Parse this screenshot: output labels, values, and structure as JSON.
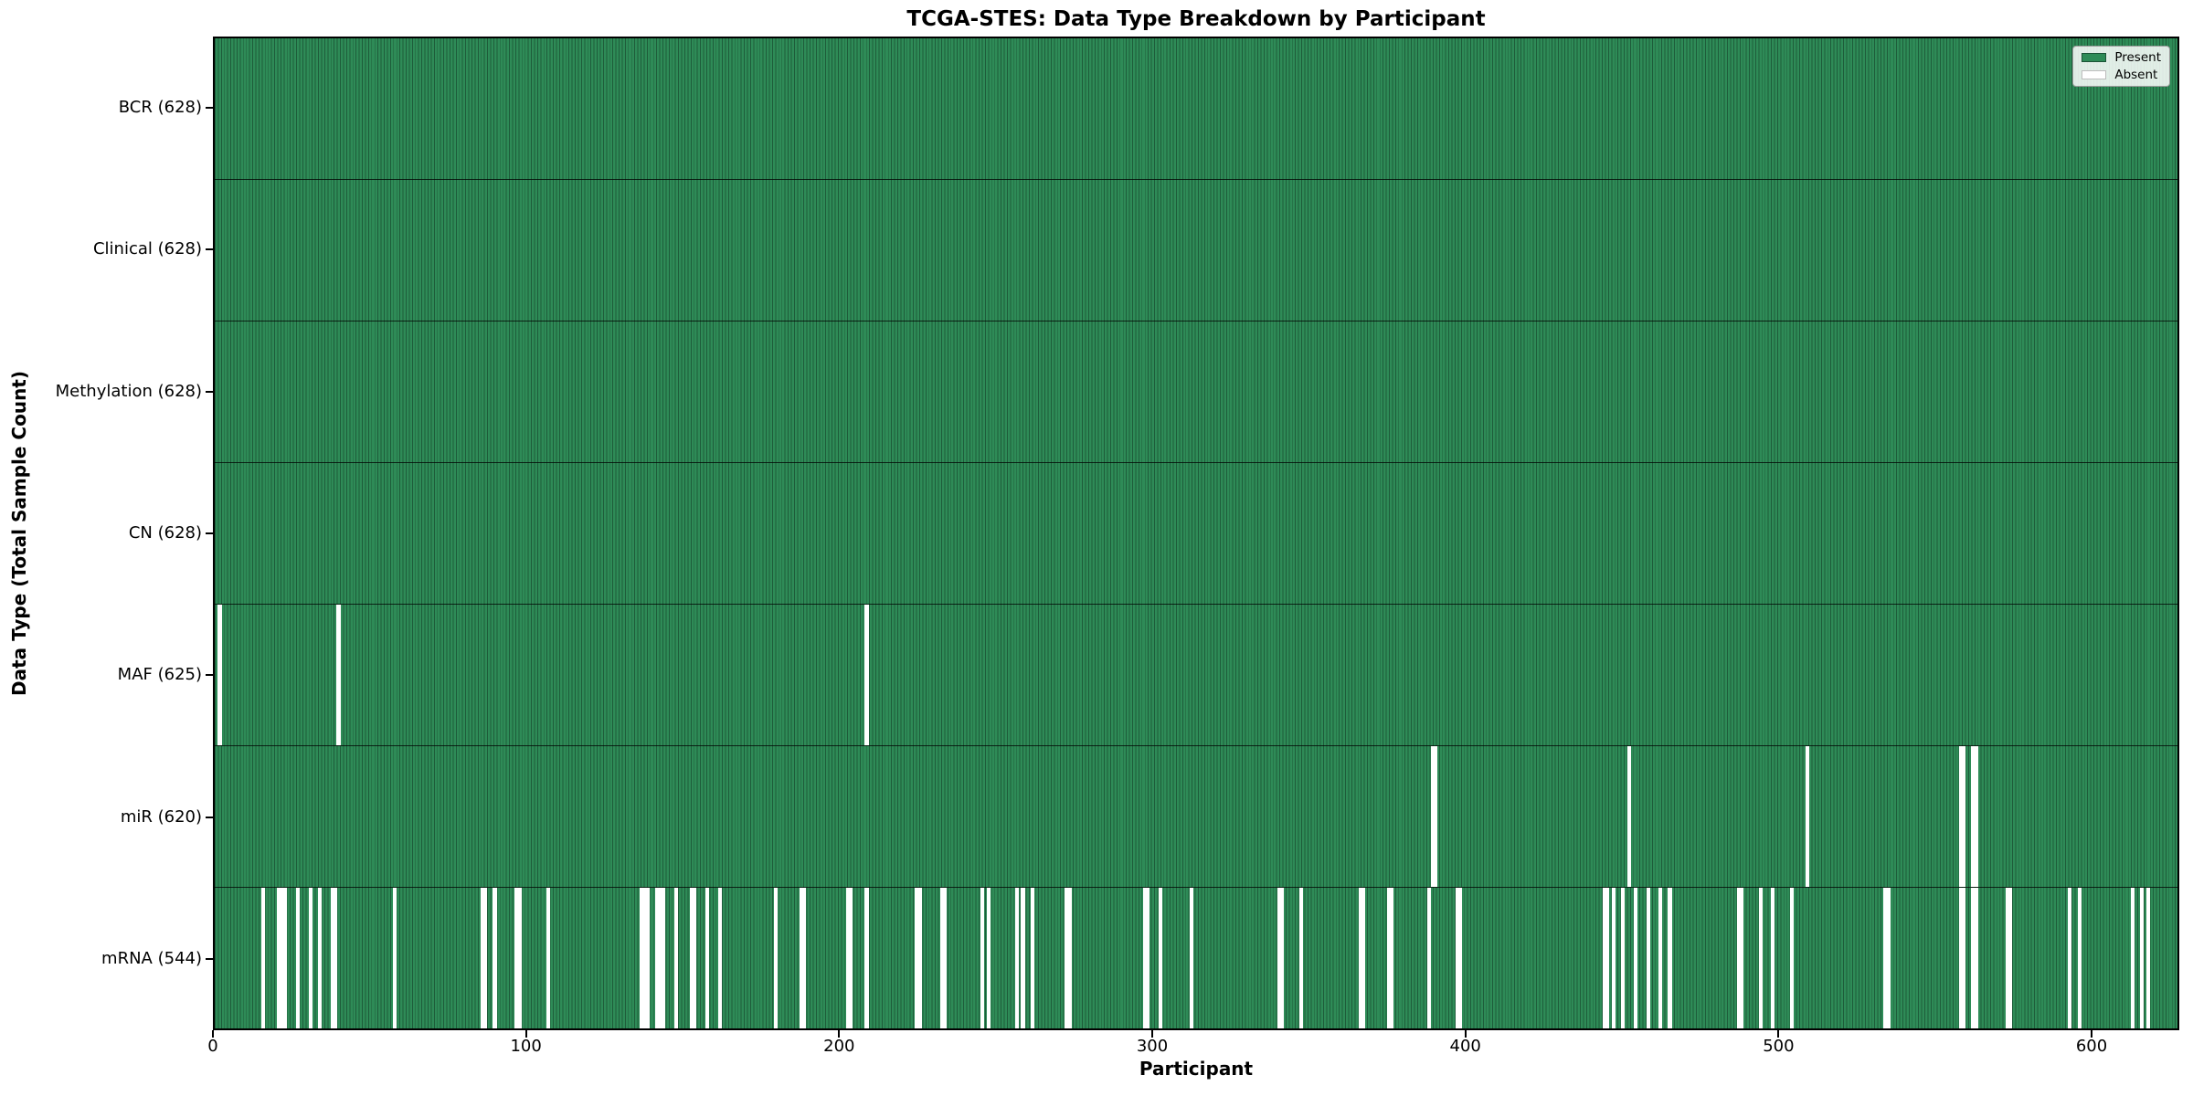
{
  "title": "TCGA-STES: Data Type Breakdown by Participant",
  "xlabel": "Participant",
  "ylabel": "Data Type (Total Sample Count)",
  "legend": {
    "position": "upper right",
    "items": [
      {
        "label": "Present",
        "color": "#2e8b57"
      },
      {
        "label": "Absent",
        "color": "#ffffff"
      }
    ]
  },
  "colors": {
    "present_fill": "#2e8b57",
    "present_edge": "#1e5c3a",
    "absent_fill": "#ffffff",
    "spine": "#000000"
  },
  "chart_data": {
    "type": "heatmap",
    "x_axis": {
      "label": "Participant",
      "ticks": [
        0,
        100,
        200,
        300,
        400,
        500,
        600
      ],
      "range": [
        0,
        628
      ]
    },
    "n_participants": 628,
    "grid": false,
    "legend_entries": [
      "Present",
      "Absent"
    ],
    "rows": [
      {
        "label": "BCR (628)",
        "data_type": "BCR",
        "present_count": 628,
        "absent_participants": []
      },
      {
        "label": "Clinical (628)",
        "data_type": "Clinical",
        "present_count": 628,
        "absent_participants": []
      },
      {
        "label": "Methylation (628)",
        "data_type": "Methylation",
        "present_count": 628,
        "absent_participants": []
      },
      {
        "label": "CN (628)",
        "data_type": "CN",
        "present_count": 628,
        "absent_participants": []
      },
      {
        "label": "MAF (625)",
        "data_type": "MAF",
        "present_count": 625,
        "absent_participants": [
          1,
          39,
          208
        ]
      },
      {
        "label": "miR (620)",
        "data_type": "miR",
        "present_count": 620,
        "absent_participants": [
          389,
          390,
          452,
          509,
          558,
          559,
          562,
          563
        ]
      },
      {
        "label": "mRNA (544)",
        "data_type": "mRNA",
        "present_count": 544,
        "absent_participants": [
          15,
          20,
          21,
          22,
          26,
          30,
          33,
          37,
          38,
          57,
          85,
          86,
          89,
          96,
          97,
          106,
          136,
          137,
          138,
          141,
          142,
          143,
          147,
          152,
          153,
          157,
          161,
          179,
          187,
          188,
          202,
          203,
          208,
          224,
          225,
          232,
          233,
          245,
          247,
          256,
          258,
          261,
          272,
          273,
          297,
          298,
          302,
          312,
          340,
          341,
          347,
          366,
          367,
          375,
          376,
          388,
          397,
          398,
          444,
          445,
          447,
          450,
          454,
          458,
          462,
          465,
          487,
          488,
          494,
          498,
          504,
          534,
          535,
          558,
          559,
          562,
          563,
          573,
          574,
          593,
          596,
          613,
          616,
          618
        ]
      }
    ]
  }
}
